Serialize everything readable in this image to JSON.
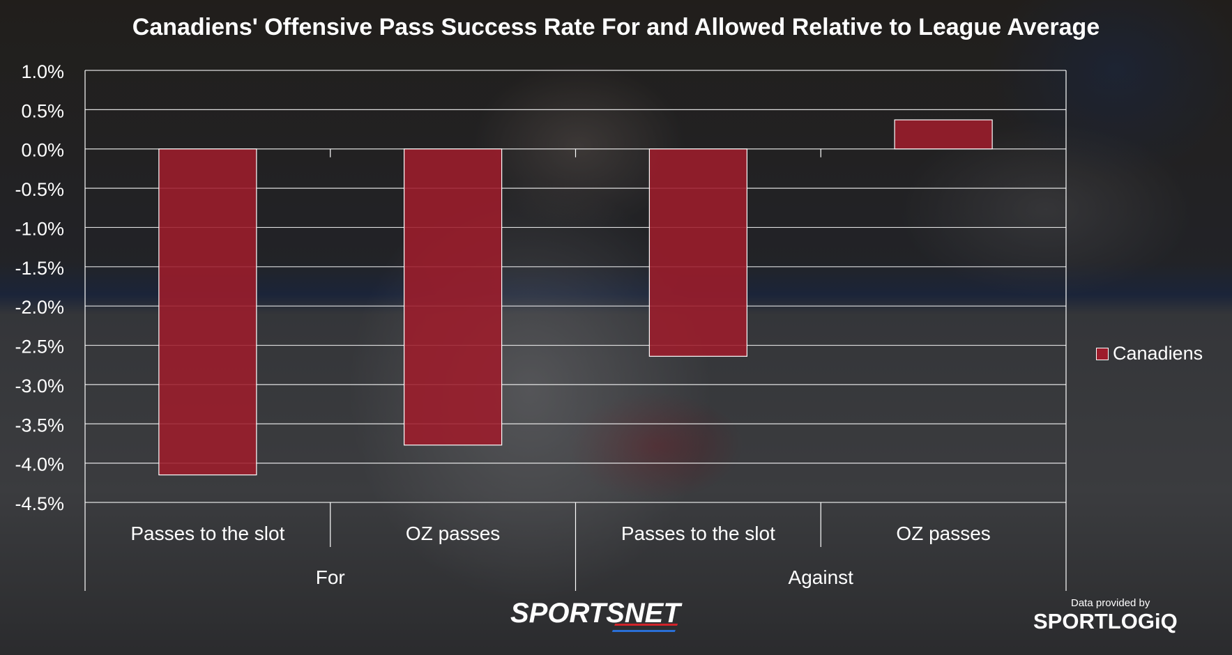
{
  "title": "Canadiens' Offensive Pass Success Rate For and Allowed Relative to League Average",
  "legend": {
    "label": "Canadiens"
  },
  "branding": {
    "main": "SPORTSNET",
    "credit_line": "Data provided by",
    "credit_brand": "SPORTLOGiQ"
  },
  "colors": {
    "bar": "#9d1c2b",
    "grid": "#ffffff",
    "text": "#ffffff"
  },
  "chart_data": {
    "type": "bar",
    "title": "Canadiens' Offensive Pass Success Rate For and Allowed Relative to League Average",
    "categories": [
      "Passes to the slot",
      "OZ passes",
      "Passes to the slot",
      "OZ passes"
    ],
    "groups": [
      {
        "label": "For",
        "categories": [
          "Passes to the slot",
          "OZ passes"
        ]
      },
      {
        "label": "Against",
        "categories": [
          "Passes to the slot",
          "OZ passes"
        ]
      }
    ],
    "series": [
      {
        "name": "Canadiens",
        "values": [
          -4.15,
          -3.77,
          -2.64,
          0.37
        ]
      }
    ],
    "y_ticks": [
      "1.0%",
      "0.5%",
      "0.0%",
      "-0.5%",
      "-1.0%",
      "-1.5%",
      "-2.0%",
      "-2.5%",
      "-3.0%",
      "-3.5%",
      "-4.0%",
      "-4.5%"
    ],
    "ylim": [
      -4.5,
      1.0
    ],
    "grid": true,
    "legend_position": "right"
  }
}
